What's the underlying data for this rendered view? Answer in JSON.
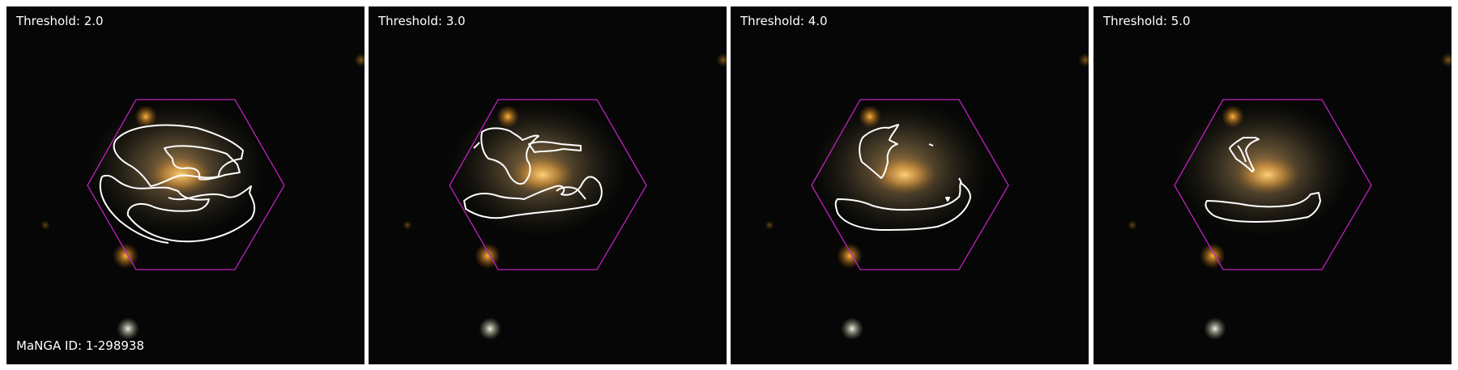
{
  "figure": {
    "manga_id_label": "MaNGA ID: 1-298938",
    "hexagon_color": "#c020c0",
    "contour_color": "#ffffff",
    "panels": [
      {
        "threshold_label": "Threshold: 2.0"
      },
      {
        "threshold_label": "Threshold: 3.0"
      },
      {
        "threshold_label": "Threshold: 4.0"
      },
      {
        "threshold_label": "Threshold: 5.0"
      }
    ]
  }
}
